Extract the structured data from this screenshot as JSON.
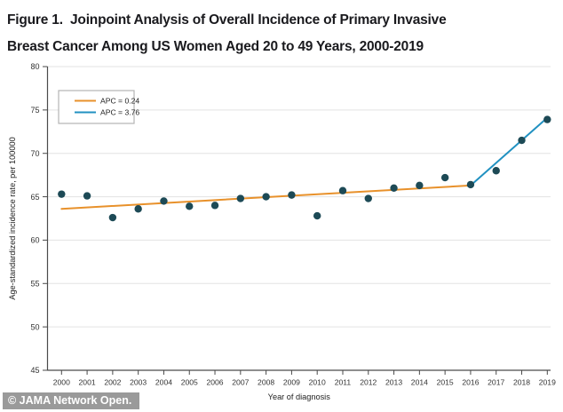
{
  "title": {
    "line1": "Figure 1.  Joinpoint Analysis of Overall Incidence of Primary Invasive",
    "line2": "Breast Cancer Among US Women Aged 20 to 49 Years, 2000-2019"
  },
  "footer": {
    "text": "© JAMA Network Open."
  },
  "chart_data": {
    "type": "scatter",
    "title": "",
    "xlabel": "Year of diagnosis",
    "ylabel": "Age-standardized incidence rate, per 100000",
    "ylim": [
      45,
      80
    ],
    "ytick_step": 5,
    "yticks": [
      45,
      50,
      55,
      60,
      65,
      70,
      75,
      80
    ],
    "grid": "horizontal",
    "legend_position": "top-left",
    "x": [
      2000,
      2001,
      2002,
      2003,
      2004,
      2005,
      2006,
      2007,
      2008,
      2009,
      2010,
      2011,
      2012,
      2013,
      2014,
      2015,
      2016,
      2017,
      2018,
      2019
    ],
    "observed_points": [
      65.3,
      65.1,
      62.6,
      63.6,
      64.5,
      63.9,
      64.0,
      64.8,
      65.0,
      65.2,
      62.8,
      65.7,
      64.8,
      66.0,
      66.3,
      67.2,
      66.4,
      68.0,
      71.5,
      73.9
    ],
    "segments": [
      {
        "label": "APC = 0.24",
        "color": "#E8912B",
        "x": [
          2000,
          2016
        ],
        "y": [
          63.6,
          66.3
        ]
      },
      {
        "label": "APC = 3.76",
        "color": "#2191C1",
        "x": [
          2016,
          2019
        ],
        "y": [
          66.3,
          74.1
        ]
      }
    ],
    "point_color": "#1D4A56",
    "grid_color": "#E3E3E3",
    "axis_color": "#4A4A4A",
    "tick_text_color": "#333333"
  }
}
